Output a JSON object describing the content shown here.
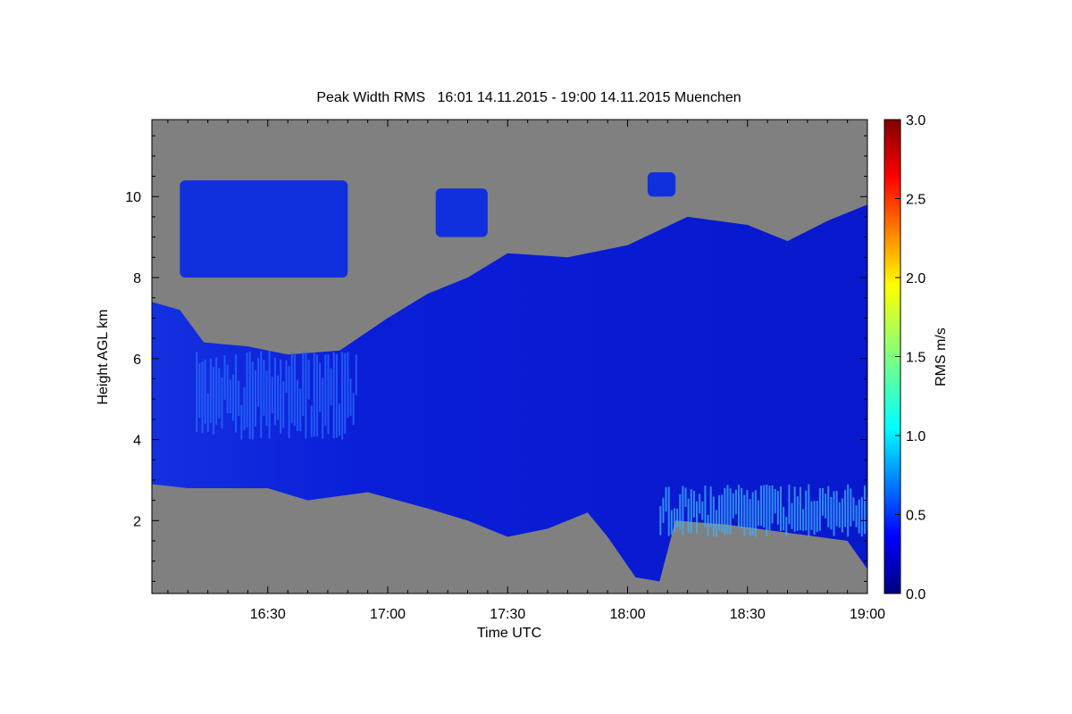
{
  "chart_data": {
    "type": "heatmap",
    "title": "Peak Width RMS   16:01 14.11.2015 - 19:00 14.11.2015 Muenchen",
    "xlabel": "Time UTC",
    "ylabel": "Height AGL km",
    "x_range": [
      "16:01",
      "19:00"
    ],
    "y_range_km": [
      0.2,
      11.9
    ],
    "x_ticks": [
      {
        "value": "16:30",
        "label": "16:30"
      },
      {
        "value": "17:00",
        "label": "17:00"
      },
      {
        "value": "17:30",
        "label": "17:30"
      },
      {
        "value": "18:00",
        "label": "18:00"
      },
      {
        "value": "18:30",
        "label": "18:30"
      },
      {
        "value": "19:00",
        "label": "19:00"
      }
    ],
    "y_ticks": [
      {
        "value": 2,
        "label": "2"
      },
      {
        "value": 4,
        "label": "4"
      },
      {
        "value": 6,
        "label": "6"
      },
      {
        "value": 8,
        "label": "8"
      },
      {
        "value": 10,
        "label": "10"
      }
    ],
    "colorbar": {
      "label": "RMS m/s",
      "range": [
        0.0,
        3.0
      ],
      "ticks": [
        {
          "value": 0.0,
          "label": "0.0"
        },
        {
          "value": 0.5,
          "label": "0.5"
        },
        {
          "value": 1.0,
          "label": "1.0"
        },
        {
          "value": 1.5,
          "label": "1.5"
        },
        {
          "value": 2.0,
          "label": "2.0"
        },
        {
          "value": 2.5,
          "label": "2.5"
        },
        {
          "value": 3.0,
          "label": "3.0"
        }
      ],
      "colormap": "jet"
    },
    "missing_color": "#808080",
    "cloud_top_km": [
      [
        "16:01",
        7.4
      ],
      [
        "16:08",
        7.2
      ],
      [
        "16:14",
        6.4
      ],
      [
        "16:25",
        6.3
      ],
      [
        "16:35",
        6.1
      ],
      [
        "16:48",
        6.2
      ],
      [
        "17:00",
        7.0
      ],
      [
        "17:10",
        7.6
      ],
      [
        "17:20",
        8.0
      ],
      [
        "17:30",
        8.6
      ],
      [
        "17:45",
        8.5
      ],
      [
        "18:00",
        8.8
      ],
      [
        "18:15",
        9.5
      ],
      [
        "18:30",
        9.3
      ],
      [
        "18:40",
        8.9
      ],
      [
        "18:50",
        9.4
      ],
      [
        "19:00",
        9.8
      ]
    ],
    "cloud_base_km": [
      [
        "16:01",
        2.9
      ],
      [
        "16:10",
        2.8
      ],
      [
        "16:30",
        2.8
      ],
      [
        "16:40",
        2.5
      ],
      [
        "16:55",
        2.7
      ],
      [
        "17:10",
        2.3
      ],
      [
        "17:20",
        2.0
      ],
      [
        "17:30",
        1.6
      ],
      [
        "17:40",
        1.8
      ],
      [
        "17:50",
        2.2
      ],
      [
        "17:55",
        1.6
      ],
      [
        "18:02",
        0.6
      ],
      [
        "18:08",
        0.5
      ],
      [
        "18:12",
        2.0
      ],
      [
        "18:25",
        1.9
      ],
      [
        "18:40",
        1.7
      ],
      [
        "18:55",
        1.5
      ],
      [
        "19:00",
        0.8
      ]
    ],
    "upper_cloud_patches": [
      {
        "t_start": "16:08",
        "t_end": "16:50",
        "base_km": 8.0,
        "top_km": 10.4
      },
      {
        "t_start": "17:12",
        "t_end": "17:25",
        "base_km": 9.0,
        "top_km": 10.2
      },
      {
        "t_start": "18:05",
        "t_end": "18:12",
        "base_km": 10.0,
        "top_km": 10.6
      }
    ],
    "notes_features": [
      {
        "t_start": "16:12",
        "t_end": "16:52",
        "z_low_km": 4.0,
        "z_high_km": 6.2,
        "rms": 0.5
      },
      {
        "t_start": "18:08",
        "t_end": "19:00",
        "z_low_km": 1.6,
        "z_high_km": 2.9,
        "rms": 0.8
      }
    ]
  }
}
